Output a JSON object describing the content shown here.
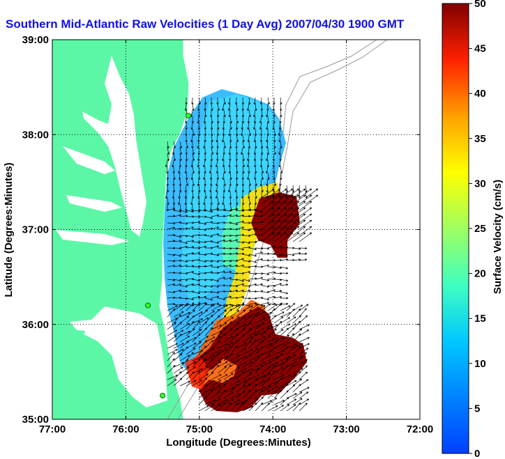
{
  "title": "Southern Mid-Atlantic Raw Velocities (1 Day Avg) 2007/04/30 1900 GMT",
  "map": {
    "xlabel": "Longitude (Degrees:Minutes)",
    "ylabel": "Latitude (Degrees:Minutes)",
    "lon_range": [
      -77,
      -72
    ],
    "lat_range": [
      35,
      39
    ],
    "x_ticks": [
      {
        "value": -77,
        "label": "77:00"
      },
      {
        "value": -76,
        "label": "76:00"
      },
      {
        "value": -75,
        "label": "75:00"
      },
      {
        "value": -74,
        "label": "74:00"
      },
      {
        "value": -73,
        "label": "73:00"
      },
      {
        "value": -72,
        "label": "72:00"
      }
    ],
    "y_ticks": [
      {
        "value": 35,
        "label": "35:00"
      },
      {
        "value": 36,
        "label": "36:00"
      },
      {
        "value": 37,
        "label": "37:00"
      },
      {
        "value": 38,
        "label": "38:00"
      },
      {
        "value": 39,
        "label": "39:00"
      }
    ],
    "grid": true,
    "land_color": "#5cf7a6",
    "stations": [
      {
        "lon": -75.15,
        "lat": 38.2
      },
      {
        "lon": -75.7,
        "lat": 36.2
      },
      {
        "lon": -75.5,
        "lat": 35.25
      }
    ]
  },
  "colorbar": {
    "label": "Surface Velocity (cm/s)",
    "range": [
      0,
      50
    ],
    "ticks": [
      {
        "value": 0,
        "label": "0"
      },
      {
        "value": 5,
        "label": "5"
      },
      {
        "value": 10,
        "label": "10"
      },
      {
        "value": 15,
        "label": "15"
      },
      {
        "value": 20,
        "label": "20"
      },
      {
        "value": 25,
        "label": "25"
      },
      {
        "value": 30,
        "label": "30"
      },
      {
        "value": 35,
        "label": "35"
      },
      {
        "value": 40,
        "label": "40"
      },
      {
        "value": 45,
        "label": "45"
      },
      {
        "value": 50,
        "label": "50"
      }
    ],
    "colormap": "jet"
  }
}
